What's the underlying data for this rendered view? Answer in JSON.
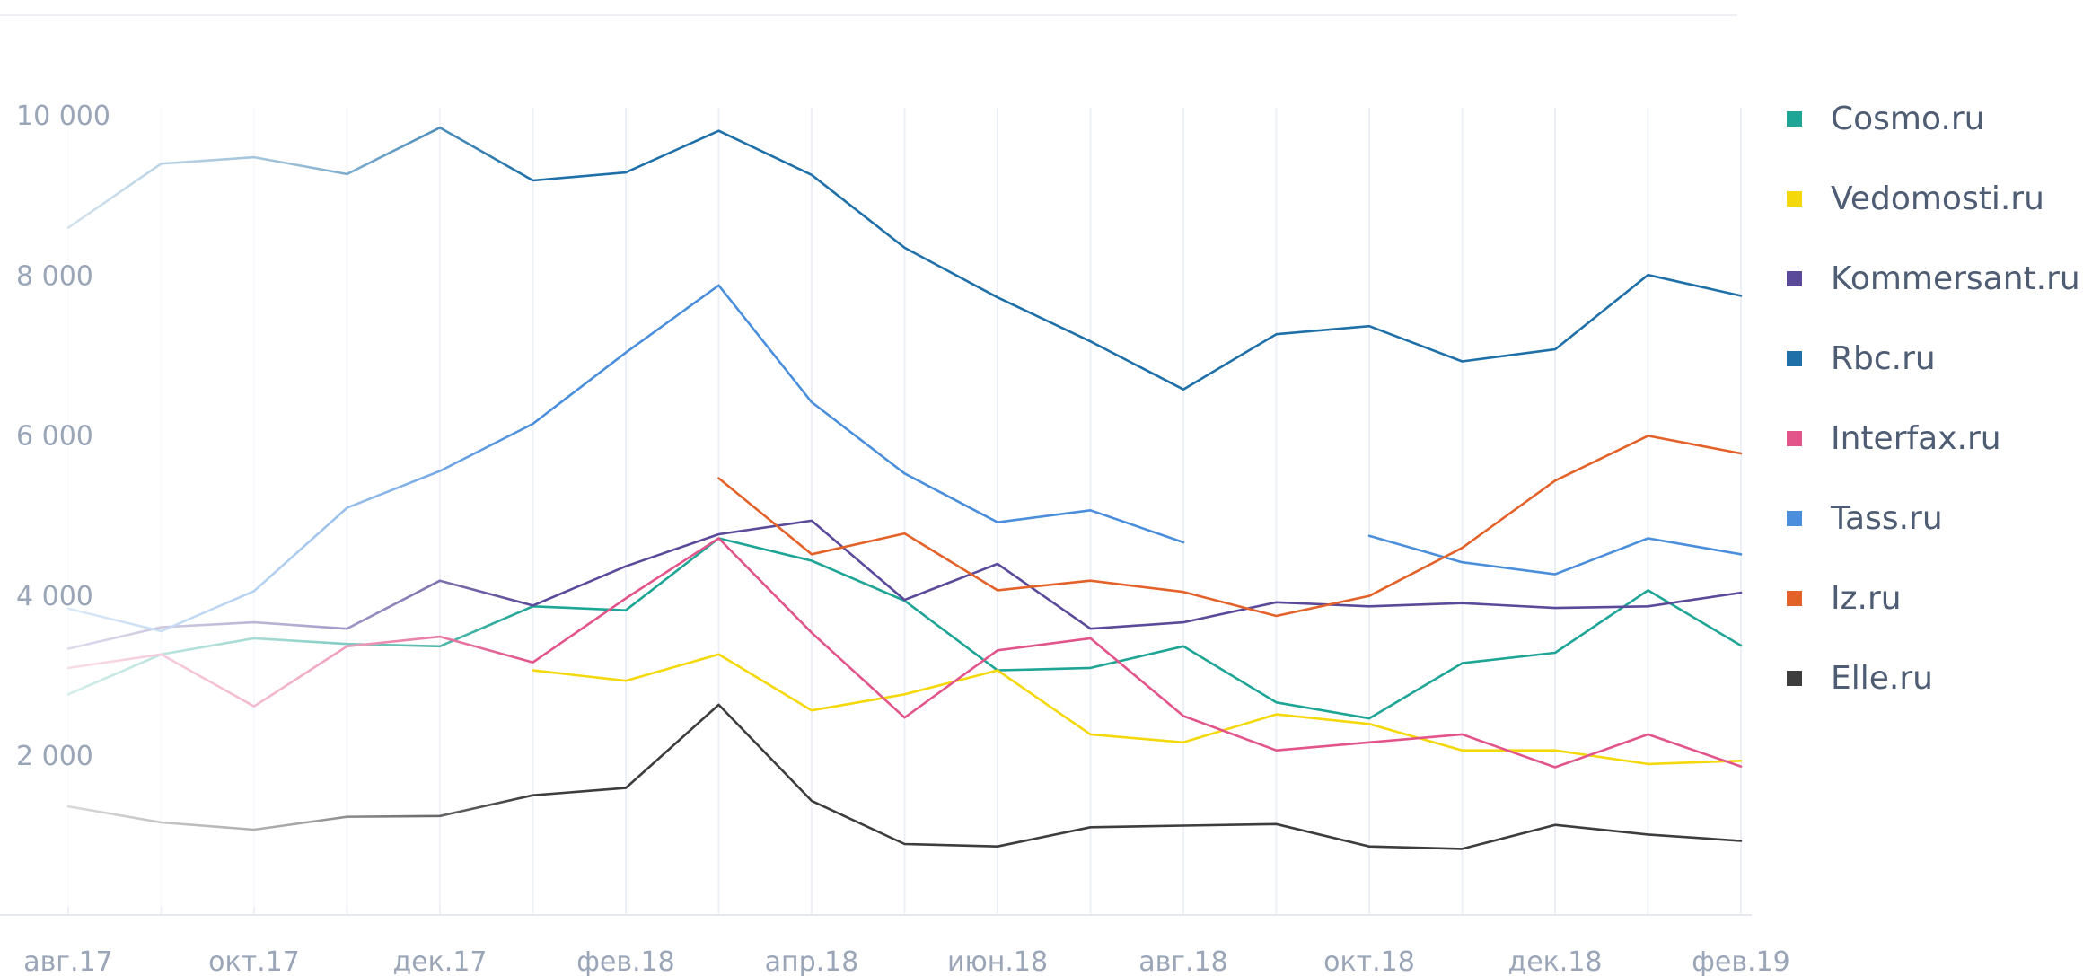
{
  "chart_data": {
    "type": "line",
    "title": "",
    "xlabel": "",
    "ylabel": "",
    "ylim": [
      0,
      10000
    ],
    "yticks": [
      2000,
      4000,
      6000,
      8000,
      10000
    ],
    "ytick_labels": [
      "2 000",
      "4 000",
      "6 000",
      "8 000",
      "10 000"
    ],
    "x": [
      "авг.17",
      "сен.17",
      "окт.17",
      "ноя.17",
      "дек.17",
      "янв.18",
      "фев.18",
      "мар.18",
      "апр.18",
      "май.18",
      "июн.18",
      "июл.18",
      "авг.18",
      "сен.18",
      "окт.18",
      "ноя.18",
      "дек.18",
      "янв.19",
      "фев.19"
    ],
    "xtick_labels": [
      "авг.17",
      "окт.17",
      "дек.17",
      "фев.18",
      "апр.18",
      "июн.18",
      "авг.18",
      "окт.18",
      "дек.18",
      "фев.19"
    ],
    "xtick_index": [
      0,
      2,
      4,
      6,
      8,
      10,
      12,
      14,
      16,
      18
    ],
    "grid": true,
    "legend_position": "right",
    "series": [
      {
        "name": "Cosmo.ru",
        "color": "#1fa595",
        "values": [
          2750,
          3250,
          3450,
          3380,
          3350,
          3850,
          3800,
          4700,
          4420,
          3920,
          3050,
          3080,
          3350,
          2650,
          2450,
          3140,
          3270,
          4050,
          3360
        ]
      },
      {
        "name": "Vedomosti.ru",
        "color": "#f5d80b",
        "values": [
          null,
          null,
          null,
          null,
          null,
          3050,
          2920,
          3250,
          2550,
          2750,
          3050,
          2250,
          2150,
          2500,
          2380,
          2050,
          2050,
          1880,
          1920
        ]
      },
      {
        "name": "Kommersant.ru",
        "color": "#5b4a9a",
        "values": [
          3320,
          3590,
          3650,
          3570,
          4170,
          3860,
          4350,
          4750,
          4920,
          3930,
          4380,
          3570,
          3650,
          3900,
          3850,
          3890,
          3830,
          3850,
          4020
        ]
      },
      {
        "name": "Rbc.ru",
        "color": "#1f70a8",
        "values": [
          8580,
          9380,
          9460,
          9250,
          9830,
          9170,
          9270,
          9790,
          9240,
          8330,
          7710,
          7160,
          6560,
          7250,
          7350,
          6910,
          7060,
          7990,
          7730
        ]
      },
      {
        "name": "Interfax.ru",
        "color": "#e2558a",
        "values": [
          3080,
          3250,
          2600,
          3350,
          3470,
          3150,
          3950,
          4700,
          3520,
          2460,
          3300,
          3450,
          2480,
          2050,
          2150,
          2250,
          1840,
          2250,
          1850
        ]
      },
      {
        "name": "Tass.ru",
        "color": "#4b8fdc",
        "values": [
          3820,
          3540,
          4040,
          5080,
          5540,
          6130,
          7020,
          7860,
          6400,
          5510,
          4900,
          5050,
          4650,
          null,
          4730,
          4400,
          4250,
          4700,
          4500
        ]
      },
      {
        "name": "Iz.ru",
        "color": "#e3622a",
        "values": [
          null,
          null,
          null,
          null,
          null,
          null,
          null,
          5450,
          4500,
          4760,
          4050,
          4170,
          4030,
          3730,
          3980,
          4580,
          5420,
          5980,
          5760
        ]
      },
      {
        "name": "Elle.ru",
        "color": "#3d3d3d",
        "values": [
          1350,
          1150,
          1060,
          1220,
          1230,
          1490,
          1580,
          2620,
          1420,
          880,
          850,
          1090,
          1110,
          1130,
          850,
          820,
          1120,
          1000,
          920
        ]
      }
    ]
  }
}
